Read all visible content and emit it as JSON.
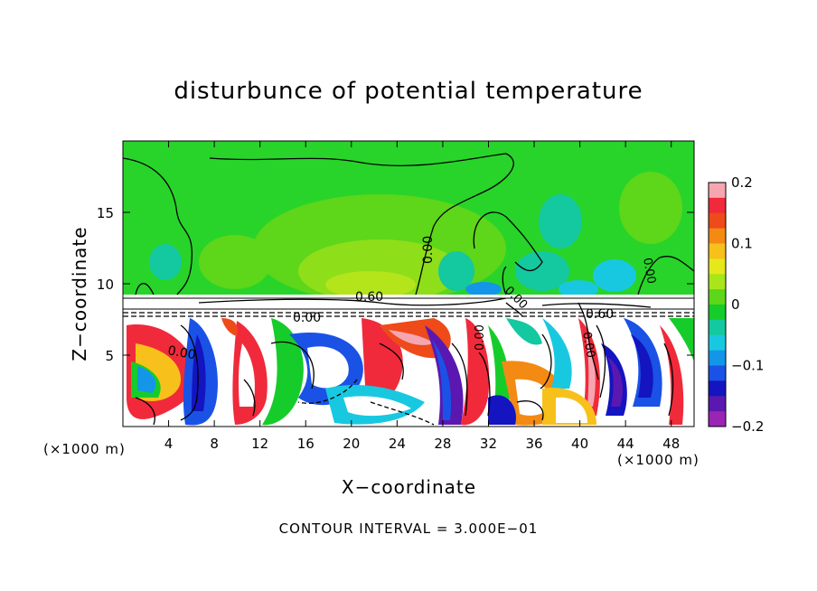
{
  "chart_data": {
    "type": "heatmap",
    "title": "disturbunce of potential temperature",
    "xlabel": "X−coordinate",
    "ylabel": "Z−coordinate",
    "x_unit_label_left": "(×1000 m)",
    "x_unit_label_right": "(×1000 m)",
    "x_ticks": [
      4,
      8,
      12,
      16,
      20,
      24,
      28,
      32,
      36,
      40,
      44,
      48
    ],
    "y_ticks": [
      5,
      10,
      15
    ],
    "xlim": [
      0,
      50
    ],
    "ylim": [
      0,
      20
    ],
    "colorbar": {
      "ticks": [
        "0.2",
        "0.1",
        "0",
        "−0.1",
        "−0.2"
      ],
      "range": [
        -0.2,
        0.2
      ],
      "colors": [
        "#f6a6b0",
        "#f02a3a",
        "#ee4a1a",
        "#f38a14",
        "#f7c01a",
        "#e6e81a",
        "#a8e61a",
        "#5ed61a",
        "#16cc2a",
        "#14c8a0",
        "#18c8e0",
        "#1496e8",
        "#1a52e6",
        "#1414c0",
        "#5a18b0",
        "#9a24b4"
      ]
    },
    "contour_labels": [
      "0.00",
      "0.60",
      "0.00",
      "0.60",
      "0.00",
      "0.00",
      "0.00",
      "0.00",
      "0.00"
    ],
    "contour_interval_text": "CONTOUR INTERVAL = 3.000E−01",
    "grid": false
  }
}
